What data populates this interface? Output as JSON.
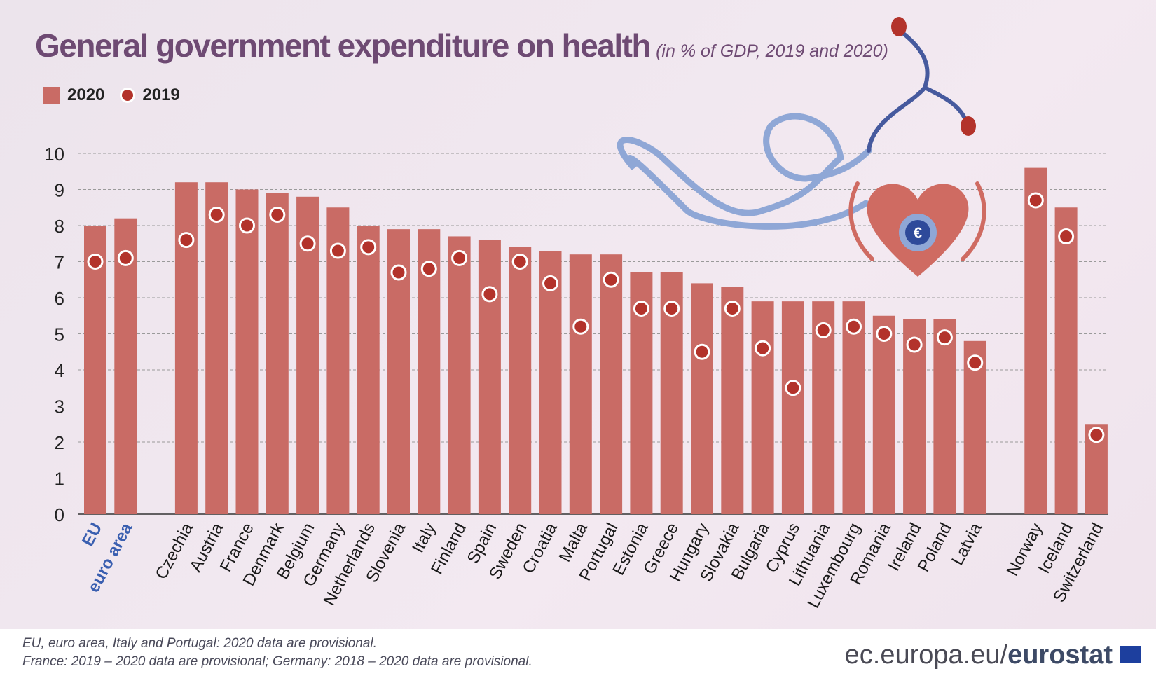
{
  "header": {
    "title": "General government expenditure on health",
    "subtitle": "(in % of GDP, 2019 and 2020)"
  },
  "legend": {
    "series_2020": "2020",
    "series_2019": "2019"
  },
  "chart_data": {
    "type": "bar",
    "title": "General government expenditure on health",
    "subtitle": "(in % of GDP, 2019 and 2020)",
    "ylim": [
      0,
      10
    ],
    "yticks": [
      0,
      1,
      2,
      3,
      4,
      5,
      6,
      7,
      8,
      9,
      10
    ],
    "grid": true,
    "legend_position": "top-left",
    "categories": [
      "EU",
      "euro area",
      "Czechia",
      "Austria",
      "France",
      "Denmark",
      "Belgium",
      "Germany",
      "Netherlands",
      "Slovenia",
      "Italy",
      "Finland",
      "Spain",
      "Sweden",
      "Croatia",
      "Malta",
      "Portugal",
      "Estonia",
      "Greece",
      "Hungary",
      "Slovakia",
      "Bulgaria",
      "Cyprus",
      "Lithuania",
      "Luxembourg",
      "Romania",
      "Ireland",
      "Poland",
      "Latvia",
      "Norway",
      "Iceland",
      "Switzerland"
    ],
    "highlighted_categories": [
      "EU",
      "euro area"
    ],
    "series": [
      {
        "name": "2020",
        "style": "bar",
        "color": "#c96b65",
        "values": [
          8.0,
          8.2,
          9.2,
          9.2,
          9.0,
          8.9,
          8.8,
          8.5,
          8.0,
          7.9,
          7.9,
          7.7,
          7.6,
          7.4,
          7.3,
          7.2,
          7.2,
          6.7,
          6.7,
          6.4,
          6.3,
          5.9,
          5.9,
          5.9,
          5.9,
          5.5,
          5.4,
          5.4,
          4.8,
          9.6,
          8.5,
          2.5
        ]
      },
      {
        "name": "2019",
        "style": "dot",
        "color": "#b3332b",
        "values": [
          7.0,
          7.1,
          7.6,
          8.3,
          8.0,
          8.3,
          7.5,
          7.3,
          7.4,
          6.7,
          6.8,
          7.1,
          6.1,
          7.0,
          6.4,
          5.2,
          6.5,
          5.7,
          5.7,
          4.5,
          5.7,
          4.6,
          3.5,
          5.1,
          5.2,
          5.0,
          4.7,
          4.9,
          4.2,
          8.7,
          7.7,
          2.2
        ]
      }
    ]
  },
  "footer": {
    "note_1": "EU, euro area, Italy and Portugal: 2020 data are provisional.",
    "note_2": "France: 2019 – 2020 data are provisional; Germany: 2018 – 2020 data are provisional.",
    "brand_prefix": "ec.europa.eu/",
    "brand_name": "eurostat"
  },
  "colors": {
    "title": "#6e4a73",
    "bar": "#c96b65",
    "dot": "#b3332b",
    "highlight_label": "#3a5fb0",
    "grid": "#9a9a9a"
  },
  "icons": [
    "stethoscope-icon",
    "heart-icon",
    "euro-icon",
    "eu-flag-icon"
  ]
}
